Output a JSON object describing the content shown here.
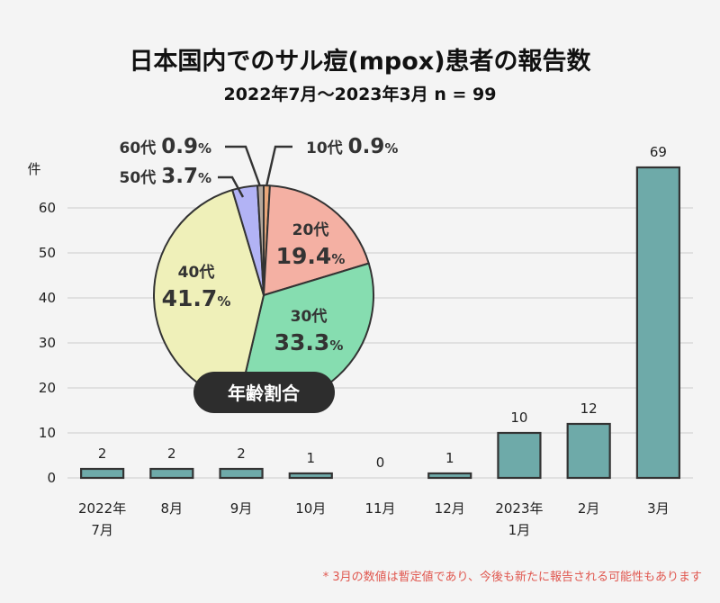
{
  "title": "日本国内でのサル痘(mpox)患者の報告数",
  "subtitle": "2022年7月〜2023年3月 n = 99",
  "y_unit": "件",
  "footnote": "* 3月の数値は暫定値であり、今後も新たに報告される可能性もあります",
  "colors": {
    "bar": "#6eaaa9",
    "bar_stroke": "#333333",
    "grid": "#cccccc"
  },
  "chart_data": [
    {
      "type": "bar",
      "categories": [
        [
          "2022年",
          "7月"
        ],
        [
          "8月"
        ],
        [
          "9月"
        ],
        [
          "10月"
        ],
        [
          "11月"
        ],
        [
          "12月"
        ],
        [
          "2023年",
          "1月"
        ],
        [
          "2月"
        ],
        [
          "3月"
        ]
      ],
      "values": [
        2,
        2,
        2,
        1,
        0,
        1,
        10,
        12,
        69
      ],
      "ylabel": "件",
      "ylim": [
        0,
        69
      ],
      "yticks": [
        0,
        10,
        20,
        30,
        40,
        50,
        60
      ],
      "grid": true
    },
    {
      "type": "pie",
      "title": "年齢割合",
      "slices": [
        {
          "label": "10代",
          "value": 0.9,
          "color": "#e8a77a"
        },
        {
          "label": "20代",
          "value": 19.4,
          "color": "#f4b0a3"
        },
        {
          "label": "30代",
          "value": 33.3,
          "color": "#86ddb0"
        },
        {
          "label": "40代",
          "value": 41.7,
          "color": "#eff0b9"
        },
        {
          "label": "50代",
          "value": 3.7,
          "color": "#b2b3f5"
        },
        {
          "label": "60代",
          "value": 0.9,
          "color": "#b4a79b"
        }
      ]
    }
  ]
}
